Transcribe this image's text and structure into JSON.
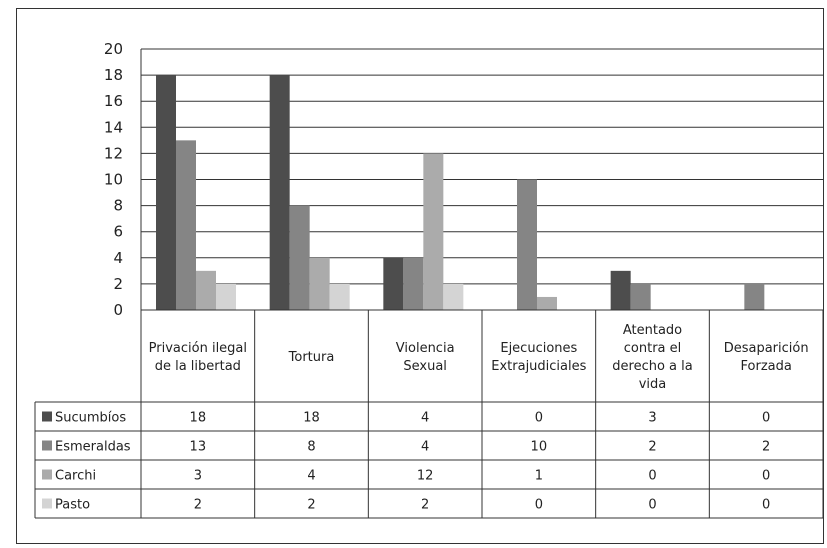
{
  "chart_data": {
    "type": "bar",
    "categories": [
      [
        "Privación ilegal",
        "de la libertad"
      ],
      [
        "Tortura"
      ],
      [
        "Violencia",
        "Sexual"
      ],
      [
        "Ejecuciones",
        "Extrajudiciales"
      ],
      [
        "Atentado",
        "contra el",
        "derecho a la",
        "vida"
      ],
      [
        "Desaparición",
        "Forzada"
      ]
    ],
    "series": [
      {
        "name": "Sucumbíos",
        "color": "#4d4d4d",
        "values": [
          18,
          18,
          4,
          0,
          3,
          0
        ]
      },
      {
        "name": "Esmeraldas",
        "color": "#858585",
        "values": [
          13,
          8,
          4,
          10,
          2,
          2
        ]
      },
      {
        "name": "Carchi",
        "color": "#ababab",
        "values": [
          3,
          4,
          12,
          1,
          0,
          0
        ]
      },
      {
        "name": "Pasto",
        "color": "#d4d4d4",
        "values": [
          2,
          2,
          2,
          0,
          0,
          0
        ]
      }
    ],
    "ylim": [
      0,
      20
    ],
    "yticks": [
      0,
      2,
      4,
      6,
      8,
      10,
      12,
      14,
      16,
      18,
      20
    ],
    "grid": true,
    "legend": "data-table",
    "title": "",
    "xlabel": "",
    "ylabel": ""
  }
}
